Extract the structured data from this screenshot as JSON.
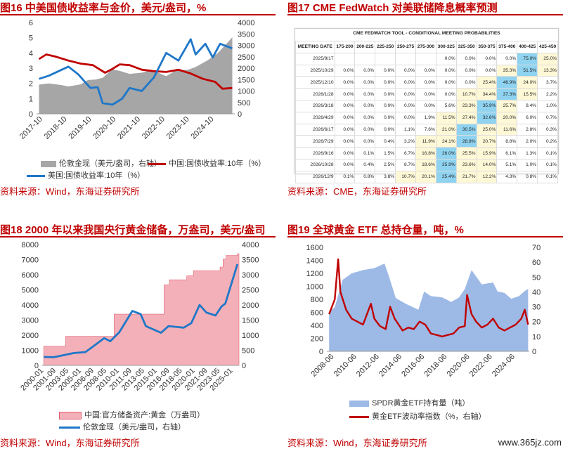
{
  "panels": {
    "p16": {
      "title": "图16  中美国债收益率与金价，美元/盎司，%",
      "source": "资料来源：Wind，东海证券研究所"
    },
    "p17": {
      "title": "图17  CME FedWatch 对美联储降息概率预测",
      "source": "资料来源：CME，东海证券研究所"
    },
    "p18": {
      "title": "图18  2000 年以来我国央行黄金储备，万盎司，美元/盎司",
      "source": "资料来源：Wind，东海证券研究所"
    },
    "p19": {
      "title": "图19  全球黄金 ETF 总持仓量，吨，%",
      "source": "资料来源：Wind，东海证券研究所"
    }
  },
  "watermark": "www.365jz.com",
  "colors": {
    "accent": "#c00000",
    "gray": "#a6a6a6",
    "blue": "#1f77c8",
    "pink": "#f4b0b8",
    "lightblue": "#9db9e6",
    "green": "#c6efce",
    "lightgreen": "#e2f0d9"
  },
  "chart_data": [
    {
      "id": "fig16",
      "type": "line",
      "x_ticks": [
        "2017-10",
        "2018-10",
        "2019-10",
        "2020-10",
        "2021-10",
        "2022-10",
        "2023-10",
        "2024-10"
      ],
      "ylim": [
        0,
        6
      ],
      "y_ticks": [
        0,
        1,
        2,
        3,
        4,
        5,
        6
      ],
      "y2lim": [
        0,
        4000
      ],
      "y2_ticks": [
        0,
        500,
        1000,
        1500,
        2000,
        2500,
        3000,
        3500,
        4000
      ],
      "series": [
        {
          "name": "伦敦金现（美元/盎司，右轴）",
          "kind": "area",
          "axis": "right",
          "color": "#a6a6a6",
          "x": [
            2017.6,
            2018.0,
            2018.5,
            2018.8,
            2019.3,
            2019.6,
            2019.9,
            2020.2,
            2020.6,
            2020.9,
            2021.3,
            2021.8,
            2022.2,
            2022.8,
            2023.2,
            2023.7,
            2024.0,
            2024.5,
            2024.9,
            2025.2,
            2025.5
          ],
          "values": [
            1280,
            1330,
            1260,
            1200,
            1290,
            1480,
            1500,
            1580,
            1950,
            1880,
            1750,
            1800,
            1920,
            1650,
            1900,
            1930,
            2050,
            2350,
            2650,
            3000,
            3350
          ]
        },
        {
          "name": "中国:国债收益率:10年（%）",
          "kind": "line",
          "axis": "left",
          "color": "#c00000",
          "x": [
            2017.6,
            2017.9,
            2018.3,
            2018.8,
            2019.3,
            2019.8,
            2020.3,
            2020.6,
            2020.9,
            2021.3,
            2021.8,
            2022.3,
            2022.8,
            2023.3,
            2023.8,
            2024.3,
            2024.8,
            2025.1,
            2025.5
          ],
          "values": [
            3.6,
            3.9,
            3.75,
            3.5,
            3.3,
            3.2,
            2.7,
            2.95,
            3.25,
            3.2,
            2.9,
            2.8,
            2.75,
            2.9,
            2.65,
            2.3,
            2.1,
            1.65,
            1.7
          ]
        },
        {
          "name": "美国:国债收益率:10年（%）",
          "kind": "line",
          "axis": "left",
          "color": "#1f77c8",
          "x": [
            2017.6,
            2018.0,
            2018.8,
            2019.2,
            2019.7,
            2020.0,
            2020.2,
            2020.6,
            2021.0,
            2021.3,
            2021.8,
            2022.3,
            2022.8,
            2023.3,
            2023.8,
            2024.0,
            2024.4,
            2024.7,
            2025.0,
            2025.5
          ],
          "values": [
            2.3,
            2.5,
            3.1,
            2.6,
            1.7,
            1.75,
            0.7,
            0.6,
            1.0,
            1.7,
            1.5,
            2.4,
            4.0,
            3.5,
            4.9,
            3.9,
            4.6,
            3.7,
            4.6,
            4.3
          ]
        }
      ]
    },
    {
      "id": "fig17",
      "type": "table",
      "table_title": "CME FEDWATCH TOOL - CONDITIONAL MEETING PROBABILITIES",
      "columns": [
        "MEETING DATE",
        "175-200",
        "200-225",
        "225-250",
        "250-275",
        "275-300",
        "300-325",
        "325-350",
        "350-375",
        "375-400",
        "400-425",
        "425-450"
      ],
      "rows": [
        [
          "2025/9/17",
          "",
          "",
          "",
          "",
          "",
          "0.0%",
          "0.0%",
          "0.0%",
          "0.0%",
          "75.0%",
          "25.0%"
        ],
        [
          "2025/10/29",
          "0.0%",
          "0.0%",
          "0.0%",
          "0.0%",
          "0.0%",
          "0.0%",
          "0.0%",
          "0.0%",
          "35.3%",
          "51.5%",
          "13.3%"
        ],
        [
          "2025/12/10",
          "0.0%",
          "0.0%",
          "0.0%",
          "0.0%",
          "0.0%",
          "0.0%",
          "0.0%",
          "25.4%",
          "46.9%",
          "24.0%",
          "3.7%"
        ],
        [
          "2026/1/28",
          "0.0%",
          "0.0%",
          "0.0%",
          "0.0%",
          "0.0%",
          "0.0%",
          "10.7%",
          "34.4%",
          "37.3%",
          "15.5%",
          "2.2%"
        ],
        [
          "2026/3/18",
          "0.0%",
          "0.0%",
          "0.0%",
          "0.0%",
          "0.0%",
          "5.6%",
          "23.3%",
          "35.9%",
          "25.7%",
          "8.4%",
          "1.0%"
        ],
        [
          "2026/4/29",
          "0.0%",
          "0.0%",
          "0.0%",
          "0.0%",
          "1.9%",
          "11.5%",
          "27.4%",
          "32.6%",
          "20.0%",
          "6.0%",
          "0.7%"
        ],
        [
          "2026/6/17",
          "0.0%",
          "0.0%",
          "0.0%",
          "1.1%",
          "7.6%",
          "21.0%",
          "30.5%",
          "25.0%",
          "11.6%",
          "2.8%",
          "0.3%"
        ],
        [
          "2026/7/29",
          "0.0%",
          "0.0%",
          "0.4%",
          "3.2%",
          "11.9%",
          "24.1%",
          "28.8%",
          "20.7%",
          "8.8%",
          "2.0%",
          "0.2%"
        ],
        [
          "2026/9/16",
          "0.0%",
          "0.1%",
          "1.5%",
          "6.7%",
          "16.8%",
          "26.0%",
          "25.5%",
          "15.9%",
          "6.1%",
          "1.3%",
          "0.1%"
        ],
        [
          "2026/10/28",
          "0.0%",
          "0.4%",
          "2.5%",
          "8.7%",
          "18.6%",
          "25.9%",
          "23.6%",
          "14.0%",
          "5.1%",
          "1.0%",
          "0.1%"
        ],
        [
          "2026/12/9",
          "0.1%",
          "0.8%",
          "3.8%",
          "10.7%",
          "20.1%",
          "25.4%",
          "21.7%",
          "12.2%",
          "4.3%",
          "0.8%",
          "0.1%"
        ]
      ]
    },
    {
      "id": "fig18",
      "type": "bar",
      "x_ticks": [
        "2000-01",
        "2001-09",
        "2003-05",
        "2005-01",
        "2006-09",
        "2008-05",
        "2010-01",
        "2011-09",
        "2013-05",
        "2015-01",
        "2016-09",
        "2018-05",
        "2020-01",
        "2021-09",
        "2023-05",
        "2025-01"
      ],
      "ylim": [
        0,
        8000
      ],
      "y_ticks": [
        0,
        1000,
        2000,
        3000,
        4000,
        5000,
        6000,
        7000,
        8000
      ],
      "y2lim": [
        0,
        4000
      ],
      "y2_ticks": [
        0,
        500,
        1000,
        1500,
        2000,
        2500,
        3000,
        3500,
        4000
      ],
      "series": [
        {
          "name": "中国:官方储备资产:黄金（万盎司）",
          "kind": "bar",
          "axis": "left",
          "color": "#f4b0b8",
          "x": [
            2000.0,
            2002.9,
            2009.3,
            2015.5,
            2015.9,
            2016.6,
            2018.9,
            2019.8,
            2022.9,
            2023.3,
            2023.7,
            2024.1,
            2025.6
          ],
          "values": [
            1267,
            1929,
            3389,
            3389,
            5332,
            5666,
            5924,
            6264,
            6264,
            6512,
            7046,
            7280,
            7390
          ]
        },
        {
          "name": "伦敦金现（美元/盎司，右轴）",
          "kind": "line",
          "axis": "right",
          "color": "#1f77c8",
          "x": [
            2000.0,
            2001.3,
            2002.5,
            2004.0,
            2005.5,
            2006.5,
            2008.0,
            2008.8,
            2010.0,
            2011.7,
            2012.8,
            2013.5,
            2015.5,
            2016.5,
            2018.5,
            2019.5,
            2020.6,
            2021.5,
            2022.7,
            2023.5,
            2024.0,
            2024.8,
            2025.6
          ],
          "values": [
            280,
            270,
            330,
            410,
            440,
            620,
            900,
            800,
            1100,
            1800,
            1700,
            1300,
            1080,
            1300,
            1250,
            1400,
            2000,
            1750,
            1650,
            1950,
            2050,
            2700,
            3350
          ]
        }
      ]
    },
    {
      "id": "fig19",
      "type": "area",
      "x_ticks": [
        "2008-06",
        "2010-06",
        "2012-06",
        "2014-06",
        "2016-06",
        "2018-06",
        "2020-06",
        "2022-06",
        "2024-06"
      ],
      "ylim": [
        0,
        1600
      ],
      "y_ticks": [
        0,
        200,
        400,
        600,
        800,
        1000,
        1200,
        1400,
        1600
      ],
      "y2lim": [
        0,
        70
      ],
      "y2_ticks": [
        0,
        10,
        20,
        30,
        40,
        50,
        60,
        70
      ],
      "series": [
        {
          "name": "SPDR黄金ETF持有量（吨）",
          "kind": "area",
          "axis": "left",
          "color": "#9db9e6",
          "x": [
            2008.0,
            2008.5,
            2009.2,
            2010.0,
            2011.0,
            2012.0,
            2012.9,
            2013.3,
            2013.9,
            2014.8,
            2015.9,
            2016.4,
            2017.0,
            2018.0,
            2018.8,
            2019.5,
            2020.0,
            2020.6,
            2021.5,
            2022.5,
            2022.9,
            2023.5,
            2024.1,
            2024.8,
            2025.3,
            2025.6
          ],
          "values": [
            600,
            680,
            1100,
            1200,
            1250,
            1280,
            1350,
            1150,
            820,
            730,
            640,
            920,
            850,
            830,
            760,
            830,
            960,
            1250,
            1030,
            1060,
            920,
            900,
            810,
            850,
            930,
            960
          ]
        },
        {
          "name": "黄金ETF波动率指数（%，右轴）",
          "kind": "line",
          "axis": "right",
          "color": "#c00000",
          "x": [
            2008.0,
            2008.5,
            2008.8,
            2009.0,
            2009.5,
            2010.0,
            2010.5,
            2011.0,
            2011.7,
            2012.0,
            2012.5,
            2013.0,
            2013.4,
            2013.8,
            2014.5,
            2015.0,
            2015.5,
            2016.0,
            2016.5,
            2017.0,
            2017.5,
            2018.0,
            2018.5,
            2019.0,
            2019.5,
            2020.0,
            2020.2,
            2020.6,
            2021.0,
            2021.5,
            2022.0,
            2022.5,
            2023.0,
            2023.5,
            2024.0,
            2024.5,
            2025.0,
            2025.3,
            2025.6
          ],
          "values": [
            25,
            35,
            62,
            40,
            28,
            22,
            20,
            18,
            32,
            22,
            17,
            15,
            30,
            22,
            14,
            16,
            15,
            20,
            18,
            12,
            11,
            10,
            11,
            12,
            16,
            17,
            38,
            25,
            20,
            16,
            18,
            22,
            16,
            14,
            16,
            18,
            22,
            28,
            18
          ]
        }
      ]
    }
  ]
}
